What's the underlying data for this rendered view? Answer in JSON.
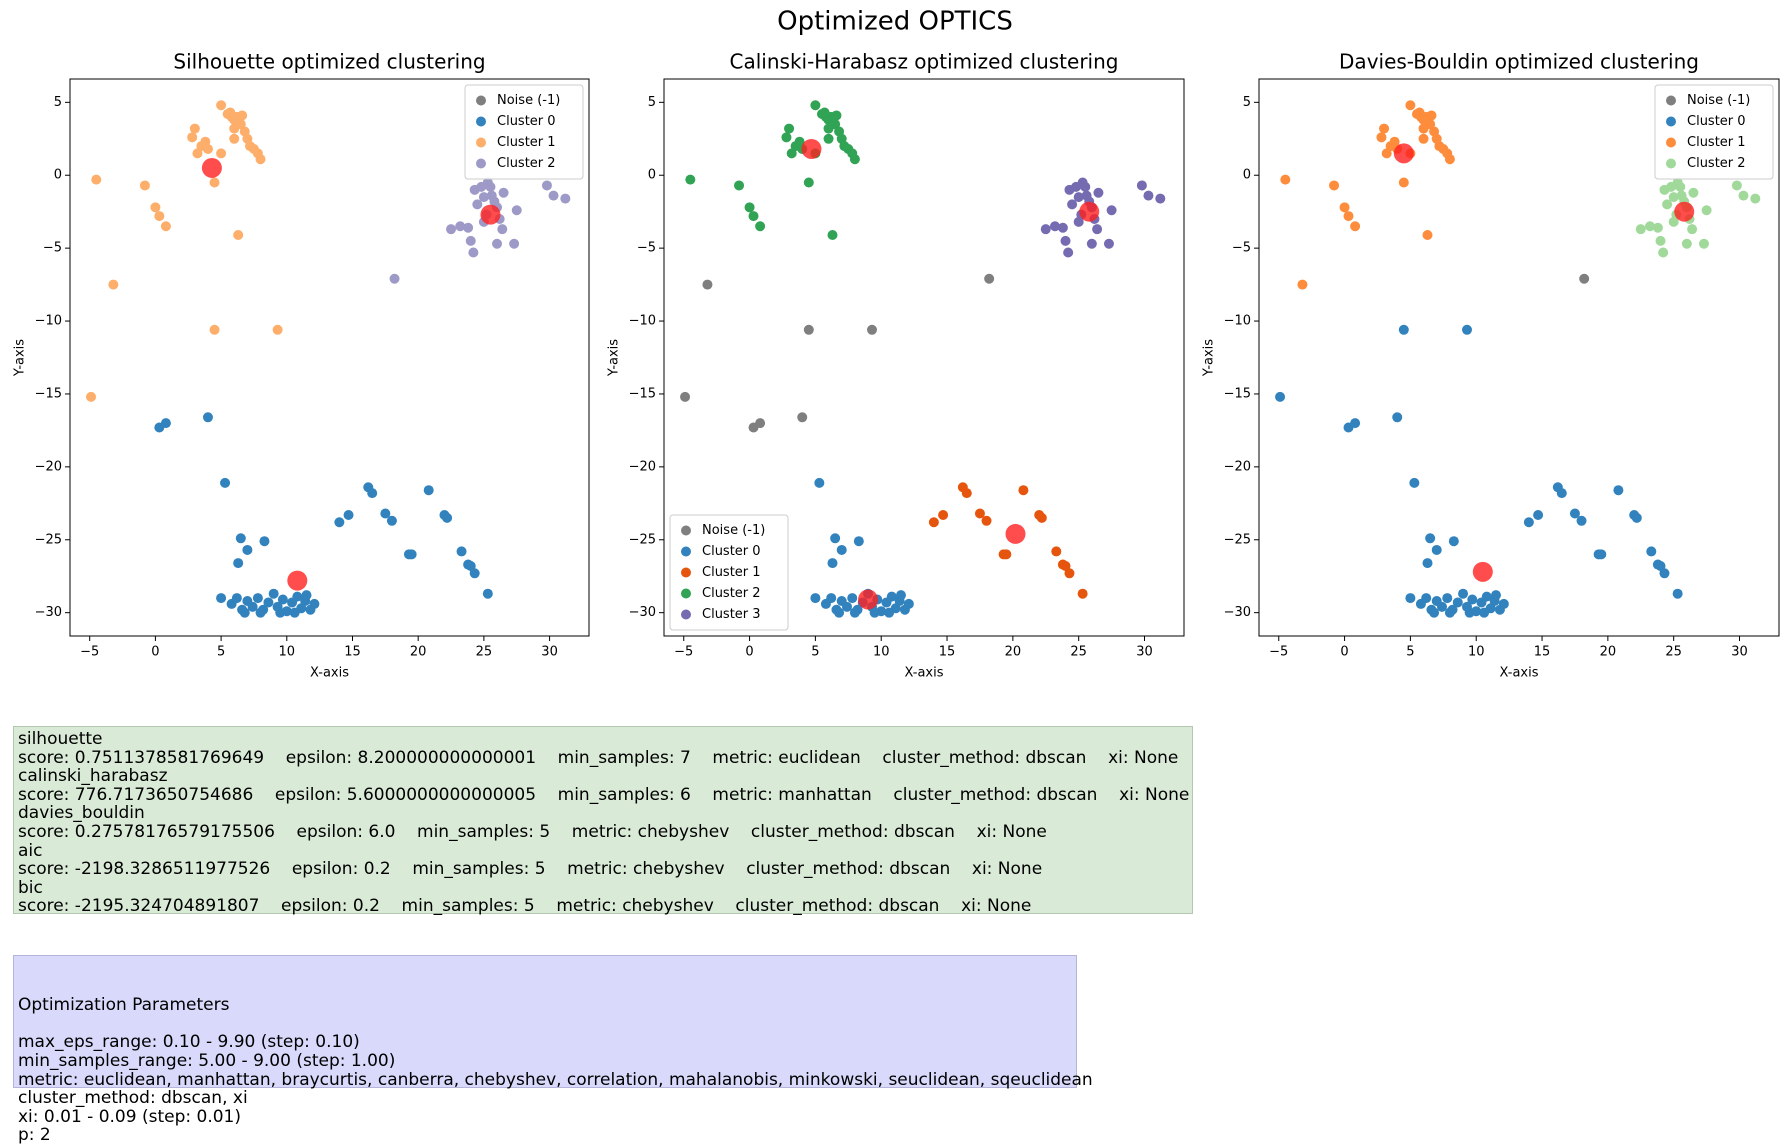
{
  "title": "Optimized OPTICS",
  "chart_data": [
    {
      "type": "scatter",
      "title": "Silhouette optimized clustering",
      "x_label": "X-axis",
      "y_label": "Y-axis",
      "xlim": [
        -6.5,
        33
      ],
      "ylim": [
        -31.6,
        6.6
      ],
      "xticks": [
        {
          "value": -5,
          "label": "−5"
        },
        0,
        5,
        10,
        15,
        20,
        25,
        30
      ],
      "yticks": [
        {
          "value": -30,
          "label": "−30"
        },
        {
          "value": -25,
          "label": "−25"
        },
        {
          "value": -20,
          "label": "−20"
        },
        {
          "value": -15,
          "label": "−15"
        },
        {
          "value": -10,
          "label": "−10"
        },
        {
          "value": -5,
          "label": "−5"
        },
        0,
        5
      ],
      "legend": "upper right",
      "series": [
        {
          "name": "Noise (-1)",
          "color": "#7f7f7f",
          "x": [],
          "values": []
        },
        {
          "name": "Cluster 0",
          "color": "#3182bd",
          "x": [
            0.3,
            0.8,
            4,
            5.3,
            6.5,
            7,
            6.3,
            8.3,
            5,
            5.8,
            6.2,
            6.6,
            7,
            7.4,
            7.8,
            8.2,
            8.6,
            9,
            9.3,
            9.7,
            10,
            10.4,
            10.8,
            11.1,
            11.4,
            11.8,
            12.1,
            9.5,
            6.8,
            8,
            10.6,
            11.5,
            14,
            14.7,
            16.2,
            16.5,
            17.5,
            18,
            19.3,
            19.5,
            20.8,
            22,
            22.2,
            23.3,
            23.8,
            24,
            24.3,
            25.3
          ],
          "values": [
            -17.3,
            -17,
            -16.6,
            -21.1,
            -24.9,
            -25.7,
            -26.6,
            -25.1,
            -29,
            -29.4,
            -29,
            -29.8,
            -29.2,
            -29.6,
            -29,
            -29.8,
            -29.3,
            -28.7,
            -29.6,
            -29.1,
            -29.9,
            -29.3,
            -28.9,
            -29.7,
            -29.2,
            -29.8,
            -29.4,
            -30,
            -30,
            -30,
            -30,
            -28.8,
            -23.8,
            -23.3,
            -21.4,
            -21.8,
            -23.2,
            -23.7,
            -26,
            -26,
            -21.6,
            -23.3,
            -23.5,
            -25.8,
            -26.7,
            -26.8,
            -27.3,
            -28.7
          ]
        },
        {
          "name": "Cluster 1",
          "color": "#fdae6b",
          "x": [
            5,
            5.5,
            5.8,
            6,
            6.2,
            6.5,
            6.8,
            7,
            7.2,
            7.5,
            7.8,
            8,
            6,
            5.7,
            6.3,
            6.6,
            3,
            2.8,
            3.5,
            3.2,
            4,
            3.8,
            4.5,
            5,
            6,
            -4.5,
            -0.8,
            0,
            0.3,
            0.8,
            6.3,
            -3.2,
            4.5,
            9.3,
            -4.9
          ],
          "values": [
            4.8,
            4.2,
            4,
            3.8,
            4,
            3.5,
            3,
            2.5,
            2,
            1.8,
            1.5,
            1.1,
            3.2,
            4.3,
            3.8,
            4.1,
            3.2,
            2.6,
            2,
            1.5,
            1.8,
            2.3,
            -0.5,
            1.5,
            2.5,
            -0.3,
            -0.7,
            -2.2,
            -2.8,
            -3.5,
            -4.1,
            -7.5,
            -10.6,
            -10.6,
            -15.2
          ]
        },
        {
          "name": "Cluster 2",
          "color": "#9e9ac8",
          "x": [
            22.5,
            23.2,
            23.8,
            24,
            24.2,
            24.5,
            24.8,
            25,
            25.3,
            25.5,
            25.8,
            26,
            26.2,
            26.4,
            26.5,
            25.2,
            25.6,
            27.3,
            26,
            27.5,
            29.8,
            30.3,
            31.2,
            24.3,
            25,
            18.2
          ],
          "values": [
            -3.7,
            -3.5,
            -3.6,
            -4.5,
            -5.3,
            -2,
            -0.8,
            -1.5,
            -0.5,
            -0.8,
            -1.8,
            -2.2,
            -3,
            -3.7,
            -1.2,
            -2.7,
            -1.4,
            -4.7,
            -4.7,
            -2.4,
            -0.7,
            -1.4,
            -1.6,
            -1,
            -3.2,
            -7.1
          ]
        }
      ],
      "centroids": {
        "color": "#ff2020",
        "x": [
          4.3,
          25.5,
          10.8
        ],
        "values": [
          0.5,
          -2.7,
          -27.8
        ]
      }
    },
    {
      "type": "scatter",
      "title": "Calinski-Harabasz optimized clustering",
      "x_label": "X-axis",
      "y_label": "Y-axis",
      "xlim": [
        -6.5,
        33
      ],
      "ylim": [
        -31.6,
        6.6
      ],
      "xticks": [
        {
          "value": -5,
          "label": "−5"
        },
        0,
        5,
        10,
        15,
        20,
        25,
        30
      ],
      "yticks": [
        {
          "value": -30,
          "label": "−30"
        },
        {
          "value": -25,
          "label": "−25"
        },
        {
          "value": -20,
          "label": "−20"
        },
        {
          "value": -15,
          "label": "−15"
        },
        {
          "value": -10,
          "label": "−10"
        },
        {
          "value": -5,
          "label": "−5"
        },
        0,
        5
      ],
      "legend": "lower left",
      "series": [
        {
          "name": "Noise (-1)",
          "color": "#7f7f7f",
          "x": [
            -3.2,
            4.5,
            9.3,
            -4.9,
            0.3,
            0.8,
            4,
            18.2
          ],
          "values": [
            -7.5,
            -10.6,
            -10.6,
            -15.2,
            -17.3,
            -17,
            -16.6,
            -7.1
          ]
        },
        {
          "name": "Cluster 0",
          "color": "#3182bd",
          "x": [
            5.3,
            6.5,
            7,
            6.3,
            8.3,
            5,
            5.8,
            6.2,
            6.6,
            7,
            7.4,
            7.8,
            8.2,
            8.6,
            9,
            9.3,
            9.7,
            10,
            10.4,
            10.8,
            11.1,
            11.4,
            11.8,
            12.1,
            9.5,
            6.8,
            8,
            10.6,
            11.5
          ],
          "values": [
            -21.1,
            -24.9,
            -25.7,
            -26.6,
            -25.1,
            -29,
            -29.4,
            -29,
            -29.8,
            -29.2,
            -29.6,
            -29,
            -29.8,
            -29.3,
            -28.7,
            -29.6,
            -29.1,
            -29.9,
            -29.3,
            -28.9,
            -29.7,
            -29.2,
            -29.8,
            -29.4,
            -30,
            -30,
            -30,
            -30,
            -28.8
          ]
        },
        {
          "name": "Cluster 1",
          "color": "#e6550d",
          "x": [
            14,
            14.7,
            16.2,
            16.5,
            17.5,
            18,
            19.3,
            19.5,
            20.8,
            22,
            22.2,
            23.3,
            23.8,
            24,
            24.3,
            25.3
          ],
          "values": [
            -23.8,
            -23.3,
            -21.4,
            -21.8,
            -23.2,
            -23.7,
            -26,
            -26,
            -21.6,
            -23.3,
            -23.5,
            -25.8,
            -26.7,
            -26.8,
            -27.3,
            -28.7
          ]
        },
        {
          "name": "Cluster 2",
          "color": "#31a354",
          "x": [
            5,
            5.5,
            5.8,
            6,
            6.2,
            6.5,
            6.8,
            7,
            7.2,
            7.5,
            7.8,
            8,
            6,
            5.7,
            6.3,
            6.6,
            3,
            2.8,
            3.5,
            3.2,
            4,
            3.8,
            4.5,
            5,
            6,
            -4.5,
            -0.8,
            0,
            0.3,
            0.8,
            6.3
          ],
          "values": [
            4.8,
            4.2,
            4,
            3.8,
            4,
            3.5,
            3,
            2.5,
            2,
            1.8,
            1.5,
            1.1,
            3.2,
            4.3,
            3.8,
            4.1,
            3.2,
            2.6,
            2,
            1.5,
            1.8,
            2.3,
            -0.5,
            1.5,
            2.5,
            -0.3,
            -0.7,
            -2.2,
            -2.8,
            -3.5,
            -4.1
          ]
        },
        {
          "name": "Cluster 3",
          "color": "#756bb1",
          "x": [
            22.5,
            23.2,
            23.8,
            24,
            24.2,
            24.5,
            24.8,
            25,
            25.3,
            25.5,
            25.8,
            26,
            26.2,
            26.4,
            26.5,
            25.2,
            25.6,
            27.3,
            26,
            27.5,
            29.8,
            30.3,
            31.2,
            24.3,
            25
          ],
          "values": [
            -3.7,
            -3.5,
            -3.6,
            -4.5,
            -5.3,
            -2,
            -0.8,
            -1.5,
            -0.5,
            -0.8,
            -1.8,
            -2.2,
            -3,
            -3.7,
            -1.2,
            -2.7,
            -1.4,
            -4.7,
            -4.7,
            -2.4,
            -0.7,
            -1.4,
            -1.6,
            -1,
            -3.2
          ]
        }
      ],
      "centroids": {
        "color": "#ff2020",
        "x": [
          4.7,
          25.8,
          9,
          20.2
        ],
        "values": [
          1.8,
          -2.5,
          -29.1,
          -24.6
        ]
      }
    },
    {
      "type": "scatter",
      "title": "Davies-Bouldin optimized clustering",
      "x_label": "X-axis",
      "y_label": "Y-axis",
      "xlim": [
        -6.5,
        33
      ],
      "ylim": [
        -31.6,
        6.6
      ],
      "xticks": [
        {
          "value": -5,
          "label": "−5"
        },
        0,
        5,
        10,
        15,
        20,
        25,
        30
      ],
      "yticks": [
        {
          "value": -30,
          "label": "−30"
        },
        {
          "value": -25,
          "label": "−25"
        },
        {
          "value": -20,
          "label": "−20"
        },
        {
          "value": -15,
          "label": "−15"
        },
        {
          "value": -10,
          "label": "−10"
        },
        {
          "value": -5,
          "label": "−5"
        },
        0,
        5
      ],
      "legend": "upper right",
      "series": [
        {
          "name": "Noise (-1)",
          "color": "#7f7f7f",
          "x": [
            18.2
          ],
          "values": [
            -7.1
          ]
        },
        {
          "name": "Cluster 0",
          "color": "#3182bd",
          "x": [
            4.5,
            9.3,
            -4.9,
            0.3,
            0.8,
            4,
            5.3,
            6.5,
            7,
            6.3,
            8.3,
            5,
            5.8,
            6.2,
            6.6,
            7,
            7.4,
            7.8,
            8.2,
            8.6,
            9,
            9.3,
            9.7,
            10,
            10.4,
            10.8,
            11.1,
            11.4,
            11.8,
            12.1,
            9.5,
            6.8,
            8,
            10.6,
            11.5,
            14,
            14.7,
            16.2,
            16.5,
            17.5,
            18,
            19.3,
            19.5,
            20.8,
            22,
            22.2,
            23.3,
            23.8,
            24,
            24.3,
            25.3
          ],
          "values": [
            -10.6,
            -10.6,
            -15.2,
            -17.3,
            -17,
            -16.6,
            -21.1,
            -24.9,
            -25.7,
            -26.6,
            -25.1,
            -29,
            -29.4,
            -29,
            -29.8,
            -29.2,
            -29.6,
            -29,
            -29.8,
            -29.3,
            -28.7,
            -29.6,
            -29.1,
            -29.9,
            -29.3,
            -28.9,
            -29.7,
            -29.2,
            -29.8,
            -29.4,
            -30,
            -30,
            -30,
            -30,
            -28.8,
            -23.8,
            -23.3,
            -21.4,
            -21.8,
            -23.2,
            -23.7,
            -26,
            -26,
            -21.6,
            -23.3,
            -23.5,
            -25.8,
            -26.7,
            -26.8,
            -27.3,
            -28.7
          ]
        },
        {
          "name": "Cluster 1",
          "color": "#fd8d3c",
          "x": [
            5,
            5.5,
            5.8,
            6,
            6.2,
            6.5,
            6.8,
            7,
            7.2,
            7.5,
            7.8,
            8,
            6,
            5.7,
            6.3,
            6.6,
            3,
            2.8,
            3.5,
            3.2,
            4,
            3.8,
            4.5,
            5,
            6,
            -4.5,
            -0.8,
            0,
            0.3,
            0.8,
            6.3,
            -3.2
          ],
          "values": [
            4.8,
            4.2,
            4,
            3.8,
            4,
            3.5,
            3,
            2.5,
            2,
            1.8,
            1.5,
            1.1,
            3.2,
            4.3,
            3.8,
            4.1,
            3.2,
            2.6,
            2,
            1.5,
            1.8,
            2.3,
            -0.5,
            1.5,
            2.5,
            -0.3,
            -0.7,
            -2.2,
            -2.8,
            -3.5,
            -4.1,
            -7.5
          ]
        },
        {
          "name": "Cluster 2",
          "color": "#a1d99b",
          "x": [
            22.5,
            23.2,
            23.8,
            24,
            24.2,
            24.5,
            24.8,
            25,
            25.3,
            25.5,
            25.8,
            26,
            26.2,
            26.4,
            26.5,
            25.2,
            25.6,
            27.3,
            26,
            27.5,
            29.8,
            30.3,
            31.2,
            24.3,
            25
          ],
          "values": [
            -3.7,
            -3.5,
            -3.6,
            -4.5,
            -5.3,
            -2,
            -0.8,
            -1.5,
            -0.5,
            -0.8,
            -1.8,
            -2.2,
            -3,
            -3.7,
            -1.2,
            -2.7,
            -1.4,
            -4.7,
            -4.7,
            -2.4,
            -0.7,
            -1.4,
            -1.6,
            -1,
            -3.2
          ]
        }
      ],
      "centroids": {
        "color": "#ff2020",
        "x": [
          4.5,
          25.8,
          10.5
        ],
        "values": [
          1.5,
          -2.5,
          -27.2
        ]
      }
    }
  ],
  "results": [
    {
      "metric": "silhouette",
      "details": "score: 0.7511378581769649    epsilon: 8.200000000000001    min_samples: 7    metric: euclidean    cluster_method: dbscan    xi: None"
    },
    {
      "metric": "calinski_harabasz",
      "details": "score: 776.7173650754686    epsilon: 5.6000000000000005    min_samples: 6    metric: manhattan    cluster_method: dbscan    xi: None"
    },
    {
      "metric": "davies_bouldin",
      "details": "score: 0.27578176579175506    epsilon: 6.0    min_samples: 5    metric: chebyshev    cluster_method: dbscan    xi: None"
    },
    {
      "metric": "aic",
      "details": "score: -2198.3286511977526    epsilon: 0.2    min_samples: 5    metric: chebyshev    cluster_method: dbscan    xi: None"
    },
    {
      "metric": "bic",
      "details": "score: -2195.324704891807    epsilon: 0.2    min_samples: 5    metric: chebyshev    cluster_method: dbscan    xi: None"
    }
  ],
  "optimization": {
    "title": "Optimization Parameters",
    "lines": [
      "max_eps_range: 0.10 - 9.90 (step: 0.10)",
      "min_samples_range: 5.00 - 9.00 (step: 1.00)",
      "metric: euclidean, manhattan, braycurtis, canberra, chebyshev, correlation, mahalanobis, minkowski, seuclidean, sqeuclidean",
      "cluster_method: dbscan, xi",
      "xi: 0.01 - 0.09 (step: 0.01)",
      "p: 2"
    ]
  }
}
